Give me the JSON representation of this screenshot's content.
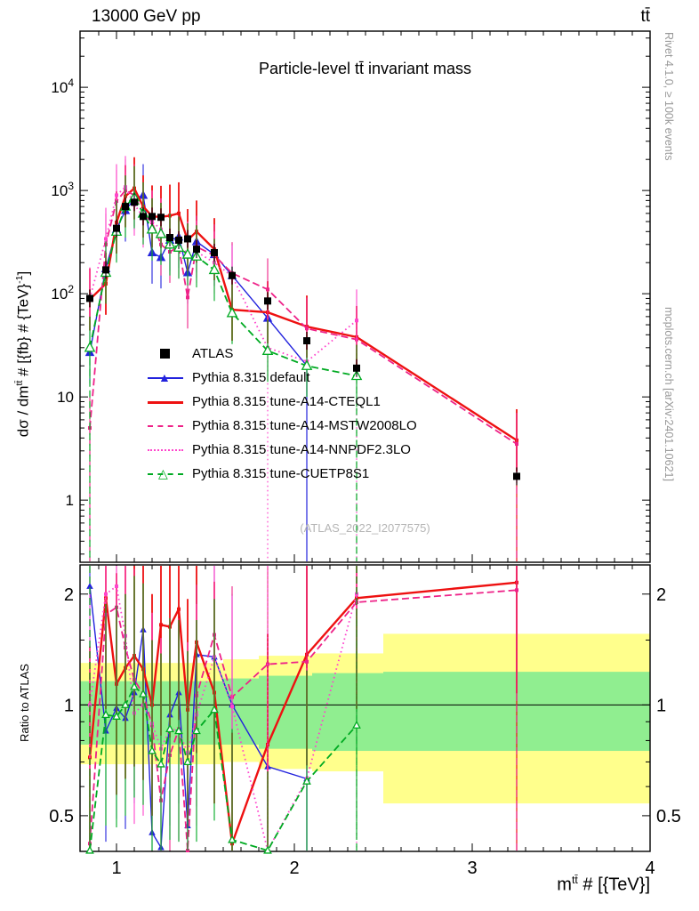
{
  "header": {
    "beam": "13000 GeV pp",
    "process": "tt̄"
  },
  "title": "Particle-level tt̄ invariant mass",
  "watermark": "(ATLAS_2022_I2077575)",
  "side_notes": {
    "top": "Rivet 4.1.0, ≥ 100k events",
    "bottom": "mcplots.cern.ch [arXiv:2401.10621]"
  },
  "axes": {
    "y_label": {
      "prefix": "dσ / dm",
      "sup1": "tt̄",
      "mid": " # [{fb} # {TeV}",
      "sup2": "-1",
      "suffix": "]"
    },
    "x_label": {
      "prefix": "m",
      "sup": "tt̄",
      "suffix": " # [{TeV}]"
    },
    "ratio_label": "Ratio to ATLAS"
  },
  "chart_data": {
    "type": "line",
    "title": "Particle-level tt̄ invariant mass",
    "xlabel": "m^{tt̄} # [{TeV}]",
    "ylabel": "dσ / dm^{tt̄} # [{fb} # {TeV}^{-1}]",
    "ratio_ylabel": "Ratio to ATLAS",
    "x_range": [
      0.795,
      4.0
    ],
    "x_ticks": [
      1,
      2,
      3,
      4
    ],
    "main_y_log_range": [
      0.25,
      35000
    ],
    "main_y_ticks": [
      1,
      10,
      100,
      1000,
      10000
    ],
    "ratio_y_log_range": [
      0.4,
      2.4
    ],
    "ratio_y_ticks": [
      0.5,
      1,
      2
    ],
    "x": [
      0.85,
      0.94,
      1.0,
      1.05,
      1.1,
      1.15,
      1.2,
      1.25,
      1.3,
      1.35,
      1.4,
      1.45,
      1.55,
      1.65,
      1.85,
      2.07,
      2.35,
      3.25
    ],
    "series": [
      {
        "label": "ATLAS",
        "color": "#000000",
        "style": "points",
        "marker": "square-filled",
        "err_lo": 0.82,
        "err_hi": 1.22,
        "values": [
          90,
          170,
          430,
          700,
          770,
          560,
          560,
          550,
          350,
          330,
          340,
          270,
          250,
          150,
          85,
          35,
          19,
          1.7
        ]
      },
      {
        "label": "Pythia 8.315 default",
        "color": "#2222dd",
        "style": "solid",
        "marker": "triangle-filled",
        "values": [
          27,
          175,
          420,
          640,
          830,
          900,
          250,
          225,
          330,
          355,
          160,
          320,
          240,
          150,
          58,
          20,
          null,
          null
        ],
        "ratio": [
          2.1,
          0.85,
          0.98,
          0.92,
          1.08,
          1.6,
          0.45,
          0.41,
          0.94,
          1.08,
          0.47,
          1.37,
          1.35,
          1.0,
          0.68,
          0.63,
          null,
          null
        ],
        "drops": [
          2.07
        ]
      },
      {
        "label": "Pythia 8.315 tune-A14-CTEQL1",
        "color": "#ee1111",
        "style": "solid-thick",
        "marker": "none",
        "values": [
          88,
          125,
          490,
          880,
          1050,
          700,
          560,
          555,
          570,
          600,
          330,
          400,
          270,
          70,
          66,
          48,
          38,
          3.8
        ],
        "ratio": [
          0.72,
          1.95,
          1.14,
          1.26,
          1.36,
          1.25,
          1.0,
          1.65,
          1.63,
          1.82,
          0.97,
          1.48,
          1.08,
          0.42,
          0.78,
          1.37,
          1.95,
          2.15
        ],
        "drops": [
          3.25
        ]
      },
      {
        "label": "Pythia 8.315 tune-A14-MSTW2008LO",
        "color": "#ee2288",
        "style": "dashed",
        "marker": "none",
        "values": [
          5,
          300,
          790,
          1000,
          900,
          600,
          490,
          300,
          255,
          285,
          92,
          285,
          235,
          158,
          110,
          46,
          36,
          3.5
        ],
        "ratio": [
          0.42,
          1.76,
          1.84,
          1.43,
          1.17,
          1.07,
          0.88,
          0.55,
          0.73,
          0.86,
          0.27,
          1.06,
          1.55,
          1.05,
          1.29,
          1.31,
          1.9,
          2.05
        ],
        "drops": [
          0.85,
          3.25
        ]
      },
      {
        "label": "Pythia 8.315 tune-A14-NNPDF2.3LO",
        "color": "#ff44cc",
        "style": "dotted",
        "marker": "none",
        "values": [
          90,
          340,
          900,
          1080,
          730,
          560,
          500,
          420,
          300,
          280,
          250,
          255,
          200,
          148,
          30,
          22,
          55,
          null
        ],
        "ratio": [
          1.0,
          2.0,
          2.1,
          1.54,
          0.95,
          1.0,
          0.89,
          0.76,
          0.86,
          0.85,
          0.74,
          0.94,
          1.35,
          0.99,
          0.35,
          0.63,
          2.0,
          null
        ],
        "drops": [
          1.85,
          2.35
        ]
      },
      {
        "label": "Pythia 8.315 tune-CUETP8S1",
        "color": "#00aa22",
        "style": "dashed",
        "marker": "triangle-open",
        "values": [
          30,
          160,
          400,
          700,
          860,
          600,
          420,
          380,
          300,
          280,
          240,
          230,
          170,
          65,
          28,
          20,
          16,
          null
        ],
        "ratio": [
          0.33,
          0.94,
          0.93,
          1.0,
          1.12,
          1.07,
          0.75,
          0.69,
          0.86,
          0.85,
          0.7,
          0.85,
          0.97,
          0.43,
          0.33,
          0.62,
          0.88,
          null
        ],
        "drops": [
          0.85,
          2.35
        ]
      }
    ],
    "bands": {
      "yellow": {
        "color": "#ffff8c",
        "segments": [
          {
            "x0": 0.795,
            "x1": 1.6,
            "lo": 0.69,
            "hi": 1.3
          },
          {
            "x0": 1.6,
            "x1": 1.8,
            "lo": 0.7,
            "hi": 1.33
          },
          {
            "x0": 1.8,
            "x1": 2.1,
            "lo": 0.67,
            "hi": 1.36
          },
          {
            "x0": 2.1,
            "x1": 2.5,
            "lo": 0.66,
            "hi": 1.38
          },
          {
            "x0": 2.5,
            "x1": 4.0,
            "lo": 0.54,
            "hi": 1.56
          }
        ]
      },
      "green": {
        "color": "#90ee90",
        "segments": [
          {
            "x0": 0.795,
            "x1": 1.6,
            "lo": 0.78,
            "hi": 1.16
          },
          {
            "x0": 1.6,
            "x1": 1.8,
            "lo": 0.78,
            "hi": 1.18
          },
          {
            "x0": 1.8,
            "x1": 2.1,
            "lo": 0.76,
            "hi": 1.2
          },
          {
            "x0": 2.1,
            "x1": 2.5,
            "lo": 0.75,
            "hi": 1.22
          },
          {
            "x0": 2.5,
            "x1": 4.0,
            "lo": 0.75,
            "hi": 1.23
          }
        ]
      }
    }
  }
}
